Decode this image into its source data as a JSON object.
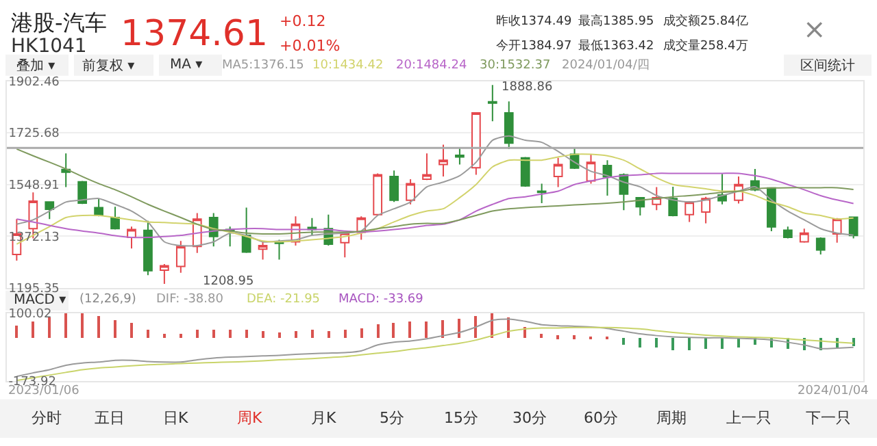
{
  "chart_data": [
    {
      "type": "candlestick",
      "title": "港股-汽车",
      "subtitle": "HK1041",
      "categories": [
        null,
        null,
        null,
        null,
        null,
        null,
        null,
        null,
        null,
        null,
        null,
        null,
        null,
        null,
        null,
        null,
        null,
        null,
        null,
        null,
        null,
        null,
        null,
        null,
        null,
        null,
        null,
        null,
        null,
        null,
        null,
        null,
        null,
        null,
        null,
        null,
        null,
        null,
        null,
        null,
        null,
        null,
        null,
        null,
        null,
        null,
        null,
        null,
        null,
        null,
        null,
        null
      ],
      "ohlc": [
        [
          1310,
          1431,
          1289,
          1380
        ],
        [
          1398,
          1522,
          1365,
          1492
        ],
        [
          1489,
          1489,
          1431,
          1464
        ],
        [
          1600,
          1655,
          1540,
          1591
        ],
        [
          1558,
          1561,
          1482,
          1485
        ],
        [
          1470,
          1501,
          1440,
          1443
        ],
        [
          1436,
          1473,
          1395,
          1398
        ],
        [
          1368,
          1405,
          1330,
          1395
        ],
        [
          1392,
          1425,
          1239,
          1254
        ],
        [
          1256,
          1277,
          1208.95,
          1271
        ],
        [
          1269,
          1356,
          1247,
          1337
        ],
        [
          1337,
          1451,
          1315,
          1431
        ],
        [
          1436,
          1451,
          1337,
          1371
        ],
        [
          1395,
          1405,
          1337,
          1390
        ],
        [
          1375,
          1470,
          1315,
          1318
        ],
        [
          1328,
          1356,
          1292,
          1340
        ],
        [
          1353,
          1360,
          1292,
          1348
        ],
        [
          1353,
          1440,
          1340,
          1413
        ],
        [
          1402,
          1434,
          1374,
          1395
        ],
        [
          1398,
          1446,
          1340,
          1345
        ],
        [
          1350,
          1386,
          1300,
          1383
        ],
        [
          1386,
          1440,
          1360,
          1434
        ],
        [
          1446,
          1587,
          1443,
          1582
        ],
        [
          1576,
          1597,
          1489,
          1495
        ],
        [
          1495,
          1567,
          1481,
          1552
        ],
        [
          1567,
          1655,
          1564,
          1582
        ],
        [
          1617,
          1685,
          1576,
          1632
        ],
        [
          1649,
          1673,
          1617,
          1643
        ],
        [
          1606,
          1794,
          1582,
          1794
        ],
        [
          1832,
          1888.86,
          1765,
          1827
        ],
        [
          1794,
          1833,
          1670,
          1690
        ],
        [
          1640,
          1643,
          1541,
          1544
        ],
        [
          1526,
          1552,
          1485,
          1522
        ],
        [
          1576,
          1640,
          1540,
          1617
        ],
        [
          1652,
          1673,
          1602,
          1605
        ],
        [
          1561,
          1652,
          1552,
          1625
        ],
        [
          1614,
          1632,
          1511,
          1575
        ],
        [
          1582,
          1587,
          1461,
          1516
        ],
        [
          1504,
          1504,
          1443,
          1473
        ],
        [
          1481,
          1540,
          1461,
          1504
        ],
        [
          1501,
          1541,
          1440,
          1443
        ],
        [
          1446,
          1492,
          1421,
          1489
        ],
        [
          1455,
          1507,
          1416,
          1501
        ],
        [
          1513,
          1585,
          1481,
          1493
        ],
        [
          1495,
          1576,
          1484,
          1549
        ],
        [
          1561,
          1602,
          1526,
          1531
        ],
        [
          1537,
          1537,
          1389,
          1404
        ],
        [
          1393,
          1405,
          1365,
          1368
        ],
        [
          1353,
          1398,
          1350,
          1383
        ],
        [
          1365,
          1368,
          1310,
          1325
        ],
        [
          1380,
          1434,
          1350,
          1431
        ],
        [
          1437,
          1437,
          1365,
          1374.61
        ]
      ],
      "colors": [
        "#e5484d",
        "#e5484d",
        "#2f8f3a",
        "#2f8f3a",
        "#2f8f3a",
        "#2f8f3a",
        "#2f8f3a",
        "#e5484d",
        "#2f8f3a",
        "#e5484d",
        "#e5484d",
        "#e5484d",
        "#2f8f3a",
        "#2f8f3a",
        "#2f8f3a",
        "#e5484d",
        "#2f8f3a",
        "#e5484d",
        "#2f8f3a",
        "#2f8f3a",
        "#e5484d",
        "#e5484d",
        "#e5484d",
        "#2f8f3a",
        "#e5484d",
        "#e5484d",
        "#e5484d",
        "#2f8f3a",
        "#e5484d",
        "#2f8f3a",
        "#2f8f3a",
        "#2f8f3a",
        "#2f8f3a",
        "#e5484d",
        "#2f8f3a",
        "#e5484d",
        "#2f8f3a",
        "#2f8f3a",
        "#2f8f3a",
        "#e5484d",
        "#2f8f3a",
        "#e5484d",
        "#e5484d",
        "#2f8f3a",
        "#e5484d",
        "#2f8f3a",
        "#2f8f3a",
        "#2f8f3a",
        "#e5484d",
        "#2f8f3a",
        "#e5484d",
        "#2f8f3a"
      ],
      "series": [
        {
          "name": "MA5:1376.15",
          "type": "line",
          "color": "#9b9b9b",
          "values": [
            1413,
            1428,
            1458,
            1489,
            1496,
            1501,
            1481,
            1458,
            1421,
            1353,
            1340,
            1340,
            1353,
            1383,
            1375,
            1353,
            1356,
            1360,
            1375,
            1380,
            1383,
            1390,
            1443,
            1466,
            1489,
            1541,
            1557,
            1579,
            1625,
            1700,
            1715,
            1700,
            1693,
            1662,
            1625,
            1594,
            1579,
            1557,
            1541,
            1511,
            1496,
            1489,
            1496,
            1511,
            1526,
            1541,
            1496,
            1458,
            1428,
            1398,
            1383,
            1376
          ]
        },
        {
          "name": "10:1434.42",
          "type": "line",
          "color": "#d2d36c",
          "values": [
            1345,
            1375,
            1405,
            1436,
            1443,
            1443,
            1436,
            1428,
            1421,
            1419,
            1416,
            1413,
            1398,
            1386,
            1371,
            1356,
            1353,
            1356,
            1360,
            1365,
            1371,
            1383,
            1398,
            1421,
            1443,
            1458,
            1466,
            1504,
            1549,
            1609,
            1632,
            1632,
            1632,
            1643,
            1652,
            1652,
            1647,
            1632,
            1602,
            1572,
            1549,
            1541,
            1534,
            1526,
            1526,
            1511,
            1489,
            1473,
            1451,
            1443,
            1431,
            1434
          ]
        },
        {
          "name": "20:1484.24",
          "type": "line",
          "color": "#b866c8",
          "values": [
            1431,
            1421,
            1409,
            1398,
            1390,
            1383,
            1374,
            1368,
            1368,
            1371,
            1375,
            1383,
            1390,
            1395,
            1398,
            1398,
            1395,
            1395,
            1395,
            1395,
            1390,
            1386,
            1390,
            1395,
            1401,
            1409,
            1413,
            1428,
            1458,
            1481,
            1501,
            1507,
            1516,
            1526,
            1549,
            1561,
            1572,
            1579,
            1582,
            1587,
            1587,
            1587,
            1587,
            1587,
            1587,
            1579,
            1567,
            1549,
            1531,
            1511,
            1496,
            1484
          ]
        },
        {
          "name": "30:1532.37",
          "type": "line",
          "color": "#7f9a5e",
          "values": [
            1670,
            1647,
            1625,
            1602,
            1576,
            1552,
            1531,
            1507,
            1481,
            1458,
            1436,
            1413,
            1395,
            1390,
            1383,
            1380,
            1380,
            1383,
            1386,
            1386,
            1386,
            1389,
            1398,
            1405,
            1413,
            1416,
            1416,
            1428,
            1443,
            1458,
            1466,
            1470,
            1473,
            1476,
            1479,
            1482,
            1485,
            1489,
            1495,
            1501,
            1507,
            1511,
            1516,
            1522,
            1526,
            1534,
            1537,
            1538,
            1538,
            1538,
            1538,
            1532
          ]
        }
      ],
      "ylim": [
        1195.35,
        1902.46
      ],
      "yticks": [
        1195.35,
        1372.13,
        1548.91,
        1725.68,
        1902.46
      ],
      "grid": "y",
      "tick_labels": "y",
      "ref_lines": [
        {
          "axis": "y",
          "value": 1674,
          "color": "#aaaaaa"
        }
      ],
      "annotations": [
        "1374.61",
        "+0.12",
        "+0.01%",
        "昨收1374.49",
        "最高1385.95",
        "成交额25.84亿",
        "今开1384.97",
        "最低1363.42",
        "成交量258.4万",
        "叠加 ▾",
        "前复权 ▾",
        "MA ▾",
        "2024/01/04/四",
        "区间统计",
        "×",
        "1888.86",
        "1208.95"
      ]
    },
    {
      "type": "bar",
      "categories": [
        null,
        null,
        null,
        null,
        null,
        null,
        null,
        null,
        null,
        null,
        null,
        null,
        null,
        null,
        null,
        null,
        null,
        null,
        null,
        null,
        null,
        null,
        null,
        null,
        null,
        null,
        null,
        null,
        null,
        null,
        null,
        null,
        null,
        null,
        null,
        null,
        null,
        null,
        null,
        null,
        null,
        null,
        null,
        null,
        null,
        null,
        null,
        null,
        null,
        null,
        null,
        null
      ],
      "series": [
        {
          "name": "DIF: -38.80",
          "type": "line",
          "color": "#9a9a9a",
          "values": [
            -156,
            -142,
            -129,
            -111,
            -102,
            -98,
            -91,
            -91,
            -96,
            -98,
            -98,
            -89,
            -82,
            -78,
            -76,
            -73,
            -71,
            -67,
            -64,
            -62,
            -60,
            -53,
            -29,
            -18,
            -13,
            -4,
            9,
            22,
            44,
            71,
            76,
            67,
            53,
            49,
            47,
            44,
            38,
            27,
            16,
            9,
            4,
            2,
            0,
            0,
            -2,
            -4,
            -9,
            -18,
            -29,
            -44,
            -42,
            -38.8
          ]
        },
        {
          "name": "DEA: -21.95",
          "type": "line",
          "color": "#c9d46a",
          "values": [
            -173,
            -162,
            -151,
            -140,
            -129,
            -122,
            -118,
            -113,
            -109,
            -107,
            -104,
            -102,
            -100,
            -98,
            -96,
            -93,
            -89,
            -87,
            -84,
            -80,
            -76,
            -69,
            -62,
            -56,
            -47,
            -40,
            -31,
            -22,
            -9,
            9,
            27,
            36,
            40,
            40,
            42,
            42,
            42,
            40,
            36,
            29,
            22,
            16,
            11,
            7,
            4,
            2,
            0,
            -4,
            -9,
            -13,
            -18,
            -21.95
          ]
        },
        {
          "name": "MACD: -33.69",
          "colors": [
            "#d9534f",
            "#d9534f",
            "#d9534f",
            "#d9534f",
            "#d9534f",
            "#d9534f",
            "#d9534f",
            "#d9534f",
            "#d9534f",
            "#d9534f",
            "#d9534f",
            "#d9534f",
            "#d9534f",
            "#d9534f",
            "#d9534f",
            "#d9534f",
            "#d9534f",
            "#d9534f",
            "#d9534f",
            "#d9534f",
            "#d9534f",
            "#d9534f",
            "#d9534f",
            "#d9534f",
            "#d9534f",
            "#d9534f",
            "#d9534f",
            "#d9534f",
            "#d9534f",
            "#d9534f",
            "#d9534f",
            "#d9534f",
            "#d9534f",
            "#d9534f",
            "#d9534f",
            "#d9534f",
            "#d9534f",
            "#3a9a5a",
            "#3a9a5a",
            "#3a9a5a",
            "#3a9a5a",
            "#3a9a5a",
            "#3a9a5a",
            "#3a9a5a",
            "#3a9a5a",
            "#3a9a5a",
            "#3a9a5a",
            "#3a9a5a",
            "#3a9a5a",
            "#3a9a5a",
            "#3a9a5a",
            "#3a9a5a"
          ],
          "values": [
            49,
            67,
            82,
            100.02,
            98,
            89,
            71,
            60,
            31,
            16,
            16,
            31,
            31,
            31,
            31,
            27,
            22,
            27,
            31,
            27,
            31,
            38,
            53,
            60,
            67,
            67,
            71,
            76,
            89,
            100,
            82,
            44,
            16,
            9,
            9,
            4,
            2,
            -29,
            -40,
            -40,
            -51,
            -51,
            -44,
            -44,
            -36,
            -29,
            -36,
            -44,
            -51,
            -51,
            -40,
            -33.69
          ]
        }
      ],
      "ylim": [
        -173.92,
        100.02
      ],
      "yticks": [
        -173.92,
        100.02
      ],
      "tick_labels": "y",
      "annotations": [
        "MACD ▾",
        "(12,26,9)",
        "2023/01/06",
        "2024/01/04",
        "分时",
        "五日",
        "日K",
        "周K",
        "月K",
        "5分",
        "15分",
        "30分",
        "60分",
        "周期",
        "上一只",
        "下一只"
      ]
    }
  ]
}
